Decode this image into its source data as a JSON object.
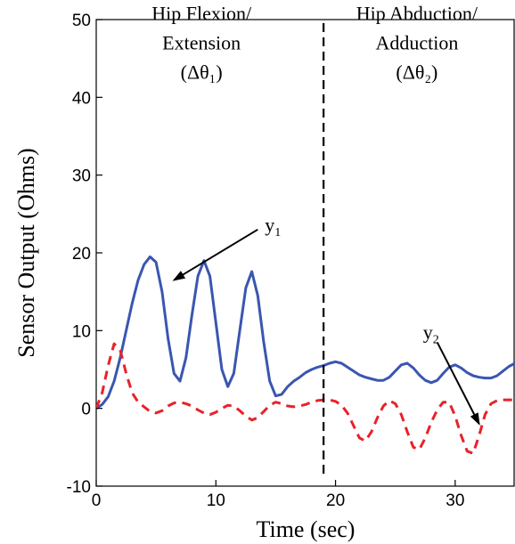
{
  "chart_data": {
    "type": "line",
    "title": "",
    "xlabel": "Time (sec)",
    "ylabel": "Sensor Output (Ohms)",
    "xlim": [
      0,
      35
    ],
    "ylim": [
      -10,
      50
    ],
    "xticks": [
      0,
      10,
      20,
      30
    ],
    "yticks": [
      -10,
      0,
      10,
      20,
      30,
      40,
      50
    ],
    "xtick_labels": [
      "0",
      "10",
      "20",
      "30"
    ],
    "ytick_labels": [
      "-10",
      "0",
      "10",
      "20",
      "30",
      "40",
      "50"
    ],
    "grid": false,
    "legend": "none",
    "vline": {
      "x": 19,
      "style": "dashed",
      "color": "#000000"
    },
    "series": [
      {
        "label_main": "y",
        "label_sub": "1",
        "color": "#3a56b0",
        "style": "solid",
        "x": [
          0,
          0.5,
          1,
          1.5,
          2,
          2.5,
          3,
          3.5,
          4,
          4.5,
          5,
          5.5,
          6,
          6.5,
          7,
          7.5,
          8,
          8.5,
          9,
          9.5,
          10,
          10.5,
          11,
          11.5,
          12,
          12.5,
          13,
          13.5,
          14,
          14.5,
          15,
          15.5,
          16,
          16.5,
          17,
          17.5,
          18,
          18.5,
          19,
          19.5,
          20,
          20.5,
          21,
          21.5,
          22,
          22.5,
          23,
          23.5,
          24,
          24.5,
          25,
          25.5,
          26,
          26.5,
          27,
          27.5,
          28,
          28.5,
          29,
          29.5,
          30,
          30.5,
          31,
          31.5,
          32,
          32.5,
          33,
          33.5,
          34,
          34.5,
          35
        ],
        "y": [
          0,
          0.5,
          1.5,
          3.5,
          6.5,
          10,
          13.5,
          16.5,
          18.5,
          19.5,
          18.8,
          15,
          9,
          4.5,
          3.5,
          6.5,
          12,
          17,
          19,
          17,
          11,
          5,
          2.8,
          4.5,
          10,
          15.5,
          17.6,
          14.5,
          8.5,
          3.5,
          1.6,
          1.8,
          2.8,
          3.5,
          4,
          4.6,
          5,
          5.3,
          5.5,
          5.8,
          6,
          5.8,
          5.3,
          4.8,
          4.3,
          4,
          3.8,
          3.6,
          3.6,
          4,
          4.8,
          5.6,
          5.8,
          5.2,
          4.3,
          3.6,
          3.3,
          3.6,
          4.5,
          5.3,
          5.6,
          5.2,
          4.6,
          4.2,
          4,
          3.9,
          3.9,
          4.2,
          4.8,
          5.4,
          5.8
        ]
      },
      {
        "label_main": "y",
        "label_sub": "2",
        "color": "#e8222a",
        "style": "dashed",
        "x": [
          0,
          0.5,
          1,
          1.5,
          2,
          2.5,
          3,
          3.5,
          4,
          4.5,
          5,
          5.5,
          6,
          6.5,
          7,
          7.5,
          8,
          8.5,
          9,
          9.5,
          10,
          10.5,
          11,
          11.5,
          12,
          12.5,
          13,
          13.5,
          14,
          14.5,
          15,
          15.5,
          16,
          16.5,
          17,
          17.5,
          18,
          18.5,
          19,
          19.5,
          20,
          20.5,
          21,
          21.5,
          22,
          22.5,
          23,
          23.5,
          24,
          24.5,
          25,
          25.5,
          26,
          26.5,
          27,
          27.5,
          28,
          28.5,
          29,
          29.5,
          30,
          30.5,
          31,
          31.5,
          32,
          32.5,
          33,
          33.5,
          34,
          34.5,
          35
        ],
        "y": [
          0,
          2,
          5.5,
          8.3,
          7.5,
          4.5,
          2,
          0.8,
          0.2,
          -0.4,
          -0.6,
          -0.3,
          0.3,
          0.7,
          0.8,
          0.6,
          0.3,
          -0.2,
          -0.6,
          -0.8,
          -0.5,
          0,
          0.4,
          0.3,
          -0.3,
          -1,
          -1.5,
          -1.2,
          -0.4,
          0.4,
          0.8,
          0.6,
          0.3,
          0.2,
          0.3,
          0.5,
          0.8,
          1,
          1.1,
          1.1,
          0.9,
          0.4,
          -0.6,
          -2.2,
          -3.8,
          -4.2,
          -3,
          -1.2,
          0.3,
          1,
          0.6,
          -0.8,
          -3,
          -5,
          -5.3,
          -3.8,
          -1.8,
          -0.2,
          0.8,
          0.8,
          -1,
          -3.5,
          -5.5,
          -5.8,
          -3.5,
          -0.8,
          0.6,
          1,
          1.1,
          1.1,
          1.1
        ]
      }
    ],
    "annotations": [
      {
        "lines": [
          "Hip Flexion/",
          "Extension",
          "(Δθ₁)"
        ],
        "x": 8.8,
        "y": 44
      },
      {
        "lines": [
          "Hip Abduction/",
          "Adduction",
          "(Δθ₂)"
        ],
        "x": 26.8,
        "y": 44
      }
    ],
    "arrows": [
      {
        "from": [
          13.5,
          23
        ],
        "to": [
          6.5,
          16.5
        ]
      },
      {
        "from": [
          28.5,
          8.5
        ],
        "to": [
          32,
          -2
        ]
      }
    ]
  }
}
